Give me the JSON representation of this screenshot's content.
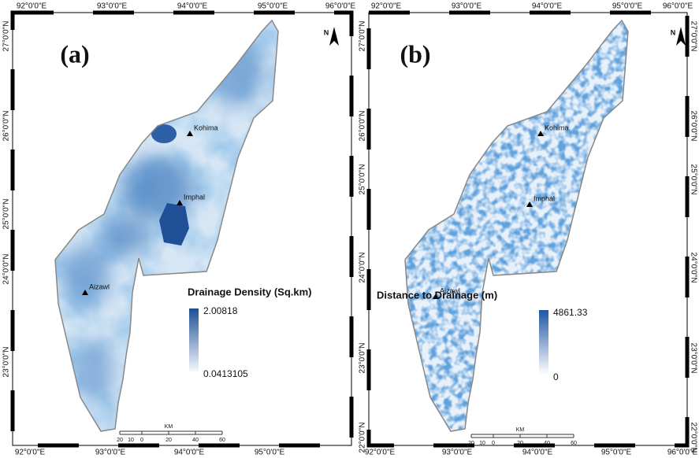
{
  "panels": [
    {
      "label": "(a)",
      "top_labels": [
        "92°0'0\"E",
        "93°0'0\"E",
        "94°0'0\"E",
        "95°0'0\"E",
        "96°0'0\"E"
      ],
      "bottom_labels": [
        "92°0'0\"E",
        "93°0'0\"E",
        "94°0'0\"E",
        "95°0'0\"E"
      ],
      "left_labels": [
        "27°0'0\"N",
        "26°0'0\"N",
        "25°0'0\"N",
        "24°0'0\"N",
        "23°0'0\"N"
      ],
      "north": "N",
      "cities": [
        "Kohima",
        "Imphal",
        "Aizawl"
      ],
      "legend": {
        "title": "Drainage Density (Sq.km)",
        "max": "2.00818",
        "min": "0.0413105"
      },
      "scale": {
        "unit": "KM",
        "ticks": [
          "20",
          "10",
          "0",
          "20",
          "40",
          "60"
        ]
      }
    },
    {
      "label": "(b)",
      "top_labels": [
        "92°0'0\"E",
        "93°0'0\"E",
        "94°0'0\"E",
        "95°0'0\"E",
        "96°0'0\"E"
      ],
      "bottom_labels": [
        "92°0'0\"E",
        "93°0'0\"E",
        "94°0'0\"E",
        "95°0'0\"E",
        "96°0'0\"E"
      ],
      "left_labels": [
        "27°0'0\"N",
        "26°0'0\"N",
        "25°0'0\"N",
        "24°0'0\"N",
        "23°0'0\"N",
        "22°0'0\"N"
      ],
      "right_labels": [
        "27°0'0\"N",
        "26°0'0\"N",
        "25°0'0\"N",
        "24°0'0\"N",
        "23°0'0\"N",
        "22°0'0\"N"
      ],
      "north": "N",
      "cities": [
        "Kohima",
        "Imphal",
        "Aizawl"
      ],
      "legend": {
        "title": "Distance to Drainage (m)",
        "max": "4861.33",
        "min": "0"
      },
      "scale": {
        "unit": "KM",
        "ticks": [
          "20",
          "10",
          "0",
          "20",
          "40",
          "60"
        ]
      }
    }
  ]
}
